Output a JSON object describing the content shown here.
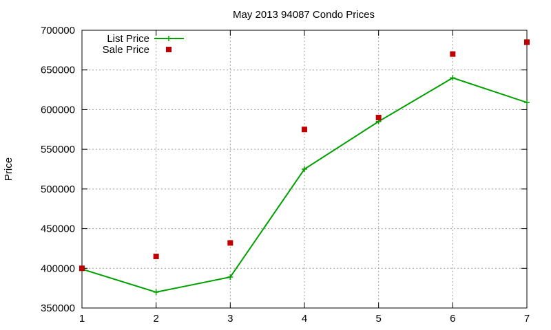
{
  "chart_data": {
    "type": "line",
    "title": "May 2013 94087 Condo Prices",
    "xlabel": "",
    "ylabel": "Price",
    "xlim": [
      1,
      7
    ],
    "ylim": [
      350000,
      700000
    ],
    "x_ticks": [
      1,
      2,
      3,
      4,
      5,
      6,
      7
    ],
    "y_ticks": [
      350000,
      400000,
      450000,
      500000,
      550000,
      600000,
      650000,
      700000
    ],
    "grid": true,
    "legend_position": "top-left",
    "series": [
      {
        "name": "List Price",
        "style": "lines+crosses",
        "color": "#00a000",
        "x": [
          1,
          2,
          3,
          4,
          5,
          6,
          7
        ],
        "y": [
          399000,
          370000,
          389000,
          525000,
          585000,
          640000,
          609000
        ]
      },
      {
        "name": "Sale Price",
        "style": "squares",
        "color": "#c00000",
        "x": [
          1,
          2,
          3,
          4,
          5,
          6,
          7
        ],
        "y": [
          400000,
          415000,
          432000,
          575000,
          590000,
          670000,
          685000
        ]
      }
    ]
  }
}
